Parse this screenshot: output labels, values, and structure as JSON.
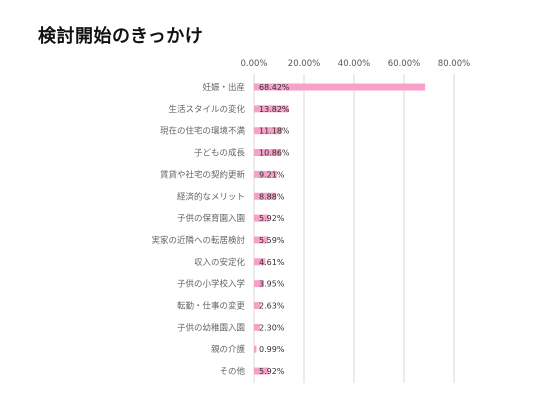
{
  "page": {
    "title": "検討開始のきっかけ"
  },
  "chart_data": {
    "type": "bar",
    "orientation": "horizontal",
    "title": "",
    "xlabel": "",
    "ylabel": "",
    "xlim": [
      0,
      80
    ],
    "x_ticks": [
      0,
      20,
      40,
      60,
      80
    ],
    "x_tick_labels": [
      "0.00%",
      "20.00%",
      "40.00%",
      "60.00%",
      "80.00%"
    ],
    "grid": "vertical",
    "legend": "none",
    "bar_color": "#f7a1c9",
    "categories": [
      "妊娠・出産",
      "生活スタイルの変化",
      "現在の住宅の環境不満",
      "子どもの成長",
      "賃貸や社宅の契約更新",
      "経済的なメリット",
      "子供の保育園入園",
      "実家の近隣への転居検討",
      "収入の安定化",
      "子供の小学校入学",
      "転勤・仕事の変更",
      "子供の幼稚園入園",
      "親の介護",
      "その他"
    ],
    "values": [
      68.42,
      13.82,
      11.18,
      10.86,
      9.21,
      8.88,
      5.92,
      5.59,
      4.61,
      3.95,
      2.63,
      2.3,
      0.99,
      5.92
    ],
    "value_labels": [
      "68.42%",
      "13.82%",
      "11.18%",
      "10.86%",
      "9.21%",
      "8.88%",
      "5.92%",
      "5.59%",
      "4.61%",
      "3.95%",
      "2.63%",
      "2.30%",
      "0.99%",
      "5.92%"
    ]
  }
}
